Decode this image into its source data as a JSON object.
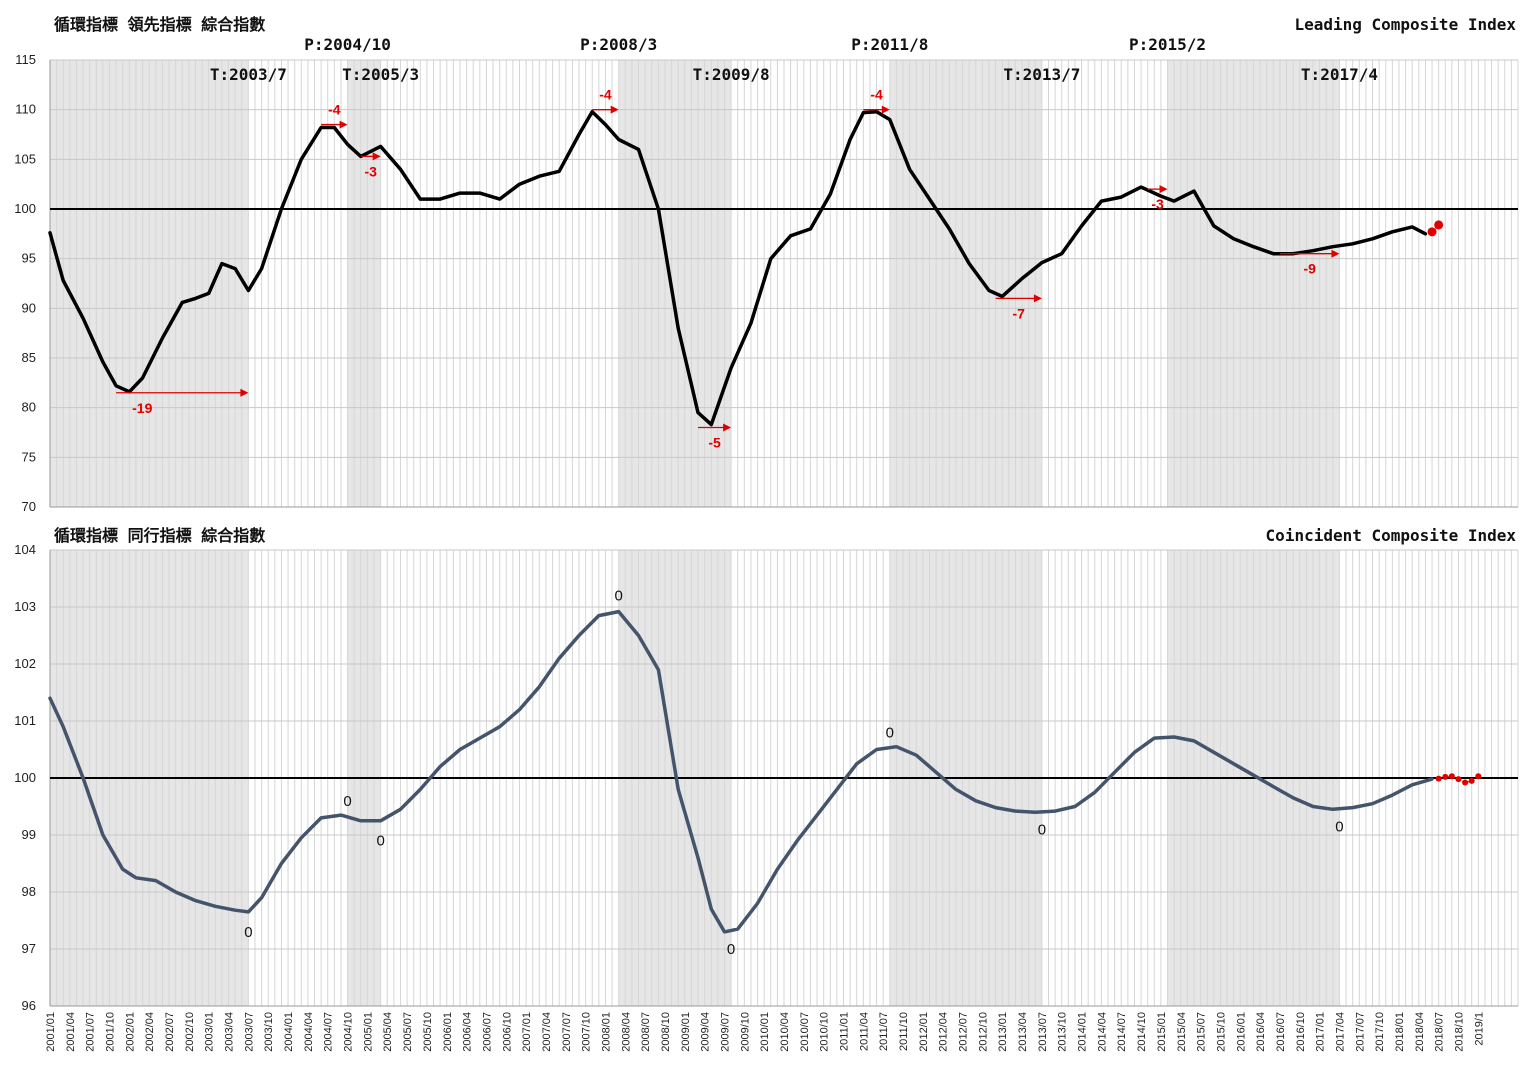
{
  "chart_data": [
    {
      "type": "line",
      "title": "循環指標 領先指標 綜合指數",
      "subtitle": "Leading Composite Index",
      "ylim": [
        70,
        115
      ],
      "yticks": [
        70,
        75,
        80,
        85,
        90,
        95,
        100,
        105,
        110,
        115
      ],
      "baseline": 100,
      "grid": true,
      "phase_labels": [
        {
          "label": "T:2003/7",
          "date": "2003/07"
        },
        {
          "label": "P:2004/10",
          "date": "2004/10"
        },
        {
          "label": "T:2005/3",
          "date": "2005/03"
        },
        {
          "label": "P:2008/3",
          "date": "2008/03"
        },
        {
          "label": "T:2009/8",
          "date": "2009/08"
        },
        {
          "label": "P:2011/8",
          "date": "2011/08"
        },
        {
          "label": "T:2013/7",
          "date": "2013/07"
        },
        {
          "label": "P:2015/2",
          "date": "2015/02"
        },
        {
          "label": "T:2017/4",
          "date": "2017/04"
        }
      ],
      "shaded_periods": [
        [
          "2001/01",
          "2003/07"
        ],
        [
          "2004/10",
          "2005/03"
        ],
        [
          "2008/03",
          "2009/08"
        ],
        [
          "2011/08",
          "2013/07"
        ],
        [
          "2015/02",
          "2017/04"
        ]
      ],
      "lead_annotations": [
        {
          "label": "-19",
          "value": 81.5,
          "from": "2001/11",
          "to": "2003/07"
        },
        {
          "label": "-4",
          "value": 108.5,
          "from": "2004/06",
          "to": "2004/10"
        },
        {
          "label": "-3",
          "value": 105.3,
          "from": "2004/12",
          "to": "2005/03"
        },
        {
          "label": "-4",
          "value": 110.0,
          "from": "2007/11",
          "to": "2008/03"
        },
        {
          "label": "-5",
          "value": 78.0,
          "from": "2009/03",
          "to": "2009/08"
        },
        {
          "label": "-4",
          "value": 110.0,
          "from": "2011/04",
          "to": "2011/08"
        },
        {
          "label": "-7",
          "value": 91.0,
          "from": "2012/12",
          "to": "2013/07"
        },
        {
          "label": "-3",
          "value": 102.0,
          "from": "2014/11",
          "to": "2015/02"
        },
        {
          "label": "-9",
          "value": 95.5,
          "from": "2016/07",
          "to": "2017/04"
        }
      ],
      "series": [
        {
          "values": [
            [
              "2001/01",
              97.6
            ],
            [
              "2001/03",
              92.8
            ],
            [
              "2001/06",
              89.0
            ],
            [
              "2001/09",
              84.6
            ],
            [
              "2001/11",
              82.2
            ],
            [
              "2002/01",
              81.6
            ],
            [
              "2002/03",
              83.0
            ],
            [
              "2002/06",
              87.0
            ],
            [
              "2002/09",
              90.6
            ],
            [
              "2002/11",
              91.0
            ],
            [
              "2003/01",
              91.5
            ],
            [
              "2003/03",
              94.5
            ],
            [
              "2003/05",
              94.0
            ],
            [
              "2003/07",
              91.8
            ],
            [
              "2003/09",
              94.0
            ],
            [
              "2003/12",
              100.0
            ],
            [
              "2004/03",
              105.0
            ],
            [
              "2004/06",
              108.2
            ],
            [
              "2004/08",
              108.2
            ],
            [
              "2004/10",
              106.5
            ],
            [
              "2004/12",
              105.3
            ],
            [
              "2005/03",
              106.3
            ],
            [
              "2005/06",
              104.0
            ],
            [
              "2005/09",
              101.0
            ],
            [
              "2005/12",
              101.0
            ],
            [
              "2006/03",
              101.6
            ],
            [
              "2006/06",
              101.6
            ],
            [
              "2006/09",
              101.0
            ],
            [
              "2006/12",
              102.5
            ],
            [
              "2007/03",
              103.3
            ],
            [
              "2007/06",
              103.8
            ],
            [
              "2007/09",
              107.5
            ],
            [
              "2007/11",
              109.8
            ],
            [
              "2008/01",
              108.5
            ],
            [
              "2008/03",
              107.0
            ],
            [
              "2008/06",
              106.0
            ],
            [
              "2008/09",
              100.0
            ],
            [
              "2008/12",
              88.0
            ],
            [
              "2009/03",
              79.5
            ],
            [
              "2009/05",
              78.3
            ],
            [
              "2009/08",
              84.0
            ],
            [
              "2009/11",
              88.5
            ],
            [
              "2010/02",
              95.0
            ],
            [
              "2010/05",
              97.3
            ],
            [
              "2010/08",
              98.0
            ],
            [
              "2010/11",
              101.5
            ],
            [
              "2011/02",
              107.0
            ],
            [
              "2011/04",
              109.7
            ],
            [
              "2011/06",
              109.8
            ],
            [
              "2011/08",
              109.0
            ],
            [
              "2011/11",
              104.0
            ],
            [
              "2012/02",
              101.0
            ],
            [
              "2012/05",
              98.0
            ],
            [
              "2012/08",
              94.5
            ],
            [
              "2012/11",
              91.8
            ],
            [
              "2013/01",
              91.2
            ],
            [
              "2013/04",
              93.0
            ],
            [
              "2013/07",
              94.6
            ],
            [
              "2013/10",
              95.5
            ],
            [
              "2014/01",
              98.3
            ],
            [
              "2014/04",
              100.8
            ],
            [
              "2014/07",
              101.2
            ],
            [
              "2014/10",
              102.2
            ],
            [
              "2015/01",
              101.3
            ],
            [
              "2015/03",
              100.8
            ],
            [
              "2015/06",
              101.8
            ],
            [
              "2015/09",
              98.3
            ],
            [
              "2015/12",
              97.0
            ],
            [
              "2016/03",
              96.2
            ],
            [
              "2016/06",
              95.5
            ],
            [
              "2016/09",
              95.5
            ],
            [
              "2016/12",
              95.8
            ],
            [
              "2017/03",
              96.2
            ],
            [
              "2017/06",
              96.5
            ],
            [
              "2017/09",
              97.0
            ],
            [
              "2017/12",
              97.7
            ],
            [
              "2018/03",
              98.2
            ],
            [
              "2018/05",
              97.5
            ]
          ]
        },
        {
          "color": "#e00000",
          "values": [
            [
              "2018/06",
              97.7
            ],
            [
              "2018/07",
              98.4
            ]
          ]
        }
      ]
    },
    {
      "type": "line",
      "title": "循環指標 同行指標 綜合指數",
      "subtitle": "Coincident Composite Index",
      "ylim": [
        96,
        104
      ],
      "yticks": [
        96,
        97,
        98,
        99,
        100,
        101,
        102,
        103,
        104
      ],
      "baseline": 100,
      "grid": true,
      "shaded_periods": [
        [
          "2001/01",
          "2003/07"
        ],
        [
          "2004/10",
          "2005/03"
        ],
        [
          "2008/03",
          "2009/08"
        ],
        [
          "2011/08",
          "2013/07"
        ],
        [
          "2015/02",
          "2017/04"
        ]
      ],
      "point_annotations": [
        {
          "label": "0",
          "date": "2003/07",
          "value": 97.3
        },
        {
          "label": "0",
          "date": "2004/10",
          "value": 99.6
        },
        {
          "label": "0",
          "date": "2005/03",
          "value": 98.9
        },
        {
          "label": "0",
          "date": "2008/03",
          "value": 103.2
        },
        {
          "label": "0",
          "date": "2009/08",
          "value": 97.0
        },
        {
          "label": "0",
          "date": "2011/08",
          "value": 100.8
        },
        {
          "label": "0",
          "date": "2013/07",
          "value": 99.1
        },
        {
          "label": "0",
          "date": "2017/04",
          "value": 99.15
        }
      ],
      "series": [
        {
          "color": "#44546a",
          "values": [
            [
              "2001/01",
              101.4
            ],
            [
              "2001/03",
              100.9
            ],
            [
              "2001/06",
              100.0
            ],
            [
              "2001/09",
              99.0
            ],
            [
              "2001/12",
              98.4
            ],
            [
              "2002/02",
              98.25
            ],
            [
              "2002/05",
              98.2
            ],
            [
              "2002/08",
              98.0
            ],
            [
              "2002/11",
              97.85
            ],
            [
              "2003/02",
              97.75
            ],
            [
              "2003/05",
              97.68
            ],
            [
              "2003/07",
              97.65
            ],
            [
              "2003/09",
              97.9
            ],
            [
              "2003/12",
              98.5
            ],
            [
              "2004/03",
              98.95
            ],
            [
              "2004/06",
              99.3
            ],
            [
              "2004/09",
              99.35
            ],
            [
              "2004/12",
              99.25
            ],
            [
              "2005/03",
              99.25
            ],
            [
              "2005/06",
              99.45
            ],
            [
              "2005/09",
              99.8
            ],
            [
              "2005/12",
              100.2
            ],
            [
              "2006/03",
              100.5
            ],
            [
              "2006/06",
              100.7
            ],
            [
              "2006/09",
              100.9
            ],
            [
              "2006/12",
              101.2
            ],
            [
              "2007/03",
              101.6
            ],
            [
              "2007/06",
              102.1
            ],
            [
              "2007/09",
              102.5
            ],
            [
              "2007/12",
              102.85
            ],
            [
              "2008/03",
              102.92
            ],
            [
              "2008/06",
              102.5
            ],
            [
              "2008/09",
              101.9
            ],
            [
              "2008/12",
              99.8
            ],
            [
              "2009/03",
              98.6
            ],
            [
              "2009/05",
              97.7
            ],
            [
              "2009/07",
              97.3
            ],
            [
              "2009/09",
              97.35
            ],
            [
              "2009/12",
              97.8
            ],
            [
              "2010/03",
              98.4
            ],
            [
              "2010/06",
              98.9
            ],
            [
              "2010/09",
              99.35
            ],
            [
              "2010/12",
              99.8
            ],
            [
              "2011/03",
              100.25
            ],
            [
              "2011/06",
              100.5
            ],
            [
              "2011/09",
              100.55
            ],
            [
              "2011/12",
              100.4
            ],
            [
              "2012/03",
              100.1
            ],
            [
              "2012/06",
              99.8
            ],
            [
              "2012/09",
              99.6
            ],
            [
              "2012/12",
              99.48
            ],
            [
              "2013/03",
              99.42
            ],
            [
              "2013/06",
              99.4
            ],
            [
              "2013/09",
              99.42
            ],
            [
              "2013/12",
              99.5
            ],
            [
              "2014/03",
              99.75
            ],
            [
              "2014/06",
              100.1
            ],
            [
              "2014/09",
              100.45
            ],
            [
              "2014/12",
              100.7
            ],
            [
              "2015/03",
              100.72
            ],
            [
              "2015/06",
              100.65
            ],
            [
              "2015/09",
              100.45
            ],
            [
              "2015/12",
              100.25
            ],
            [
              "2016/03",
              100.05
            ],
            [
              "2016/06",
              99.85
            ],
            [
              "2016/09",
              99.65
            ],
            [
              "2016/12",
              99.5
            ],
            [
              "2017/03",
              99.45
            ],
            [
              "2017/06",
              99.48
            ],
            [
              "2017/09",
              99.55
            ],
            [
              "2017/12",
              99.7
            ],
            [
              "2018/03",
              99.88
            ],
            [
              "2018/06",
              99.98
            ]
          ]
        },
        {
          "color": "#e00000",
          "values": [
            [
              "2018/07",
              99.99
            ],
            [
              "2018/08",
              100.02
            ],
            [
              "2018/09",
              100.03
            ],
            [
              "2018/10",
              99.98
            ],
            [
              "2018/11",
              99.92
            ],
            [
              "2018/12",
              99.95
            ],
            [
              "2019/01",
              100.03
            ]
          ]
        }
      ]
    }
  ],
  "x_tick_labels": [
    "2001/01",
    "2001/04",
    "2001/07",
    "2001/10",
    "2002/01",
    "2002/04",
    "2002/07",
    "2002/10",
    "2003/01",
    "2003/04",
    "2003/07",
    "2003/10",
    "2004/01",
    "2004/04",
    "2004/07",
    "2004/10",
    "2005/01",
    "2005/04",
    "2005/07",
    "2005/10",
    "2006/01",
    "2006/04",
    "2006/07",
    "2006/10",
    "2007/01",
    "2007/04",
    "2007/07",
    "2007/10",
    "2008/01",
    "2008/04",
    "2008/07",
    "2008/10",
    "2009/01",
    "2009/04",
    "2009/07",
    "2009/10",
    "2010/01",
    "2010/04",
    "2010/07",
    "2010/10",
    "2011/01",
    "2011/04",
    "2011/07",
    "2011/10",
    "2012/01",
    "2012/04",
    "2012/07",
    "2012/10",
    "2013/01",
    "2013/04",
    "2013/07",
    "2013/10",
    "2014/01",
    "2014/04",
    "2014/07",
    "2014/10",
    "2015/01",
    "2015/04",
    "2015/07",
    "2015/10",
    "2016/01",
    "2016/04",
    "2016/07",
    "2016/10",
    "2017/01",
    "2017/04",
    "2017/07",
    "2017/10",
    "2018/01",
    "2018/04",
    "2018/07",
    "2018/10",
    "2019/1"
  ]
}
